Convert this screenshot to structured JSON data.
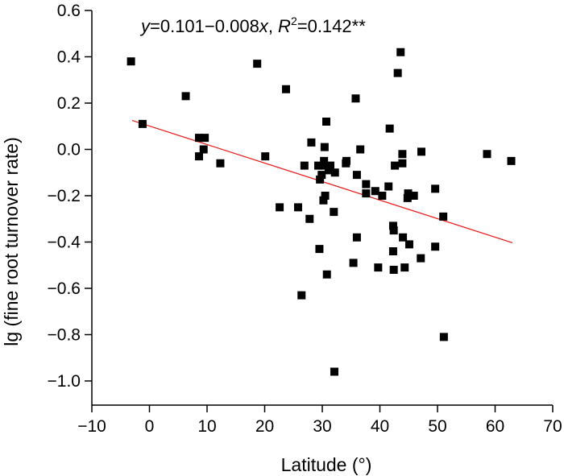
{
  "chart_data": {
    "type": "scatter",
    "xlabel": "Latitude (°)",
    "ylabel": "lg (fine root turnover rate)",
    "xlim": [
      -10,
      70
    ],
    "ylim": [
      -1.1,
      0.6
    ],
    "x_ticks": [
      -10,
      0,
      10,
      20,
      30,
      40,
      50,
      60,
      70
    ],
    "x_tick_labels": [
      "−10",
      "0",
      "10",
      "20",
      "30",
      "40",
      "50",
      "60",
      "70"
    ],
    "y_ticks": [
      -1.0,
      -0.8,
      -0.6,
      -0.4,
      -0.2,
      0.0,
      0.2,
      0.4,
      0.6
    ],
    "y_tick_labels": [
      "−1.0",
      "−0.8",
      "−0.6",
      "−0.4",
      "−0.2",
      "0.0",
      "0.2",
      "0.4",
      "0.6"
    ],
    "grid": false,
    "annotation": {
      "y_italic": "y",
      "eq_mid": "=0.101−0.008",
      "x_italic": "x",
      "sep": ", ",
      "r_italic": "R",
      "r_sup": "2",
      "r_rest": "=0.142**"
    },
    "regression": {
      "intercept": 0.101,
      "slope": -0.008,
      "x_range": [
        -3,
        63
      ],
      "color": "#e8201f"
    },
    "marker_color": "#000000",
    "points": [
      [
        -3.2,
        0.38
      ],
      [
        -1.2,
        0.11
      ],
      [
        6.3,
        0.23
      ],
      [
        8.6,
        0.05
      ],
      [
        8.6,
        -0.03
      ],
      [
        9.4,
        0.0
      ],
      [
        9.6,
        0.05
      ],
      [
        12.3,
        -0.06
      ],
      [
        18.7,
        0.37
      ],
      [
        20.1,
        -0.03
      ],
      [
        22.6,
        -0.25
      ],
      [
        23.7,
        0.26
      ],
      [
        25.8,
        -0.25
      ],
      [
        26.4,
        -0.63
      ],
      [
        26.9,
        -0.07
      ],
      [
        27.8,
        -0.3
      ],
      [
        28.1,
        0.03
      ],
      [
        29.3,
        -0.07
      ],
      [
        29.5,
        -0.43
      ],
      [
        29.6,
        -0.13
      ],
      [
        29.9,
        -0.11
      ],
      [
        30.2,
        -0.22
      ],
      [
        30.3,
        -0.05
      ],
      [
        30.4,
        -0.07
      ],
      [
        30.4,
        0.01
      ],
      [
        30.5,
        -0.2
      ],
      [
        30.7,
        0.12
      ],
      [
        30.8,
        -0.54
      ],
      [
        31.1,
        -0.09
      ],
      [
        31.4,
        -0.07
      ],
      [
        32.0,
        -0.27
      ],
      [
        32.1,
        -0.96
      ],
      [
        32.2,
        -0.1
      ],
      [
        34.2,
        -0.05
      ],
      [
        34.1,
        -0.06
      ],
      [
        35.4,
        -0.49
      ],
      [
        35.8,
        0.22
      ],
      [
        36.0,
        -0.11
      ],
      [
        36.0,
        -0.38
      ],
      [
        36.6,
        0.0
      ],
      [
        37.6,
        -0.19
      ],
      [
        37.6,
        -0.15
      ],
      [
        39.2,
        -0.18
      ],
      [
        39.7,
        -0.51
      ],
      [
        40.4,
        -0.2
      ],
      [
        41.5,
        -0.16
      ],
      [
        41.7,
        0.09
      ],
      [
        42.3,
        -0.33
      ],
      [
        42.3,
        -0.44
      ],
      [
        42.4,
        -0.35
      ],
      [
        42.4,
        -0.52
      ],
      [
        42.6,
        -0.07
      ],
      [
        43.1,
        0.33
      ],
      [
        43.6,
        0.42
      ],
      [
        43.9,
        -0.02
      ],
      [
        43.9,
        -0.06
      ],
      [
        44.0,
        -0.38
      ],
      [
        44.3,
        -0.51
      ],
      [
        44.8,
        -0.21
      ],
      [
        44.9,
        -0.19
      ],
      [
        45.1,
        -0.41
      ],
      [
        45.9,
        -0.2
      ],
      [
        47.1,
        -0.47
      ],
      [
        47.2,
        -0.01
      ],
      [
        49.6,
        -0.17
      ],
      [
        49.6,
        -0.42
      ],
      [
        51.0,
        -0.29
      ],
      [
        51.1,
        -0.81
      ],
      [
        58.6,
        -0.02
      ],
      [
        62.8,
        -0.05
      ]
    ]
  }
}
